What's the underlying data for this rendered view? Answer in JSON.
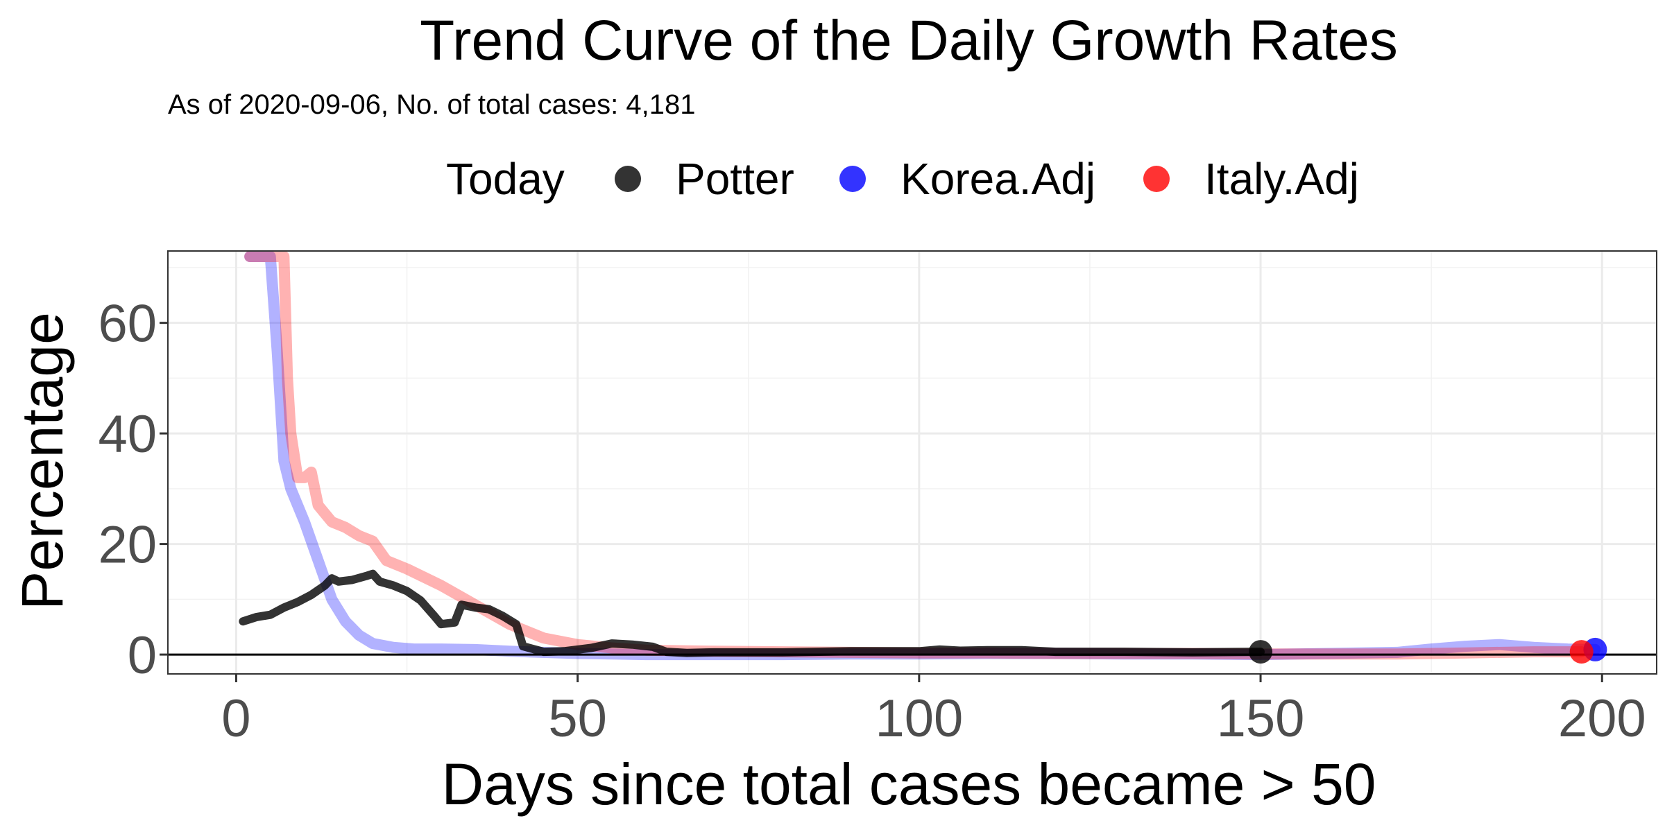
{
  "chart_data": {
    "type": "line",
    "title": "Trend Curve of the Daily Growth Rates",
    "subtitle": "As of 2020-09-06, No. of total cases: 4,181",
    "xlabel": "Days since total cases became > 50",
    "ylabel": "Percentage",
    "xlim": [
      -10,
      208
    ],
    "ylim": [
      -3.5,
      73
    ],
    "x_ticks": [
      0,
      50,
      100,
      150,
      200
    ],
    "y_ticks": [
      0,
      20,
      40,
      60
    ],
    "grid": true,
    "legend": {
      "title": "Today",
      "placement": "top"
    },
    "series": [
      {
        "name": "Potter",
        "color": "#000000",
        "opacity": 0.8,
        "points": [
          [
            1,
            6
          ],
          [
            3,
            6.8
          ],
          [
            5,
            7.2
          ],
          [
            7,
            8.5
          ],
          [
            9,
            9.5
          ],
          [
            11,
            10.8
          ],
          [
            13,
            12.5
          ],
          [
            14,
            13.8
          ],
          [
            15,
            13.2
          ],
          [
            17,
            13.5
          ],
          [
            19,
            14.2
          ],
          [
            20,
            14.6
          ],
          [
            21,
            13.2
          ],
          [
            23,
            12.5
          ],
          [
            25,
            11.5
          ],
          [
            27,
            9.8
          ],
          [
            29,
            7
          ],
          [
            30,
            5.5
          ],
          [
            32,
            5.8
          ],
          [
            33,
            9
          ],
          [
            35,
            8.5
          ],
          [
            37,
            8.2
          ],
          [
            39,
            7
          ],
          [
            41,
            5.5
          ],
          [
            42,
            1.5
          ],
          [
            45,
            0.5
          ],
          [
            48,
            0.6
          ],
          [
            52,
            1.2
          ],
          [
            55,
            2
          ],
          [
            58,
            1.8
          ],
          [
            61,
            1.4
          ],
          [
            63,
            0.5
          ],
          [
            66,
            0.3
          ],
          [
            70,
            0.4
          ],
          [
            80,
            0.4
          ],
          [
            90,
            0.6
          ],
          [
            100,
            0.6
          ],
          [
            103,
            0.9
          ],
          [
            106,
            0.7
          ],
          [
            110,
            0.8
          ],
          [
            115,
            0.8
          ],
          [
            120,
            0.5
          ],
          [
            130,
            0.5
          ],
          [
            140,
            0.4
          ],
          [
            150,
            0.5
          ]
        ],
        "today": [
          150,
          0.5
        ]
      },
      {
        "name": "Korea.Adj",
        "color": "#0000ff",
        "opacity": 0.3,
        "points": [
          [
            2,
            72
          ],
          [
            4,
            72
          ],
          [
            5,
            72
          ],
          [
            6,
            55
          ],
          [
            6.5,
            45
          ],
          [
            7,
            35
          ],
          [
            8,
            30
          ],
          [
            10,
            24
          ],
          [
            12,
            17
          ],
          [
            14,
            10
          ],
          [
            16,
            6
          ],
          [
            18,
            3.5
          ],
          [
            20,
            2
          ],
          [
            23,
            1.3
          ],
          [
            26,
            1
          ],
          [
            30,
            1
          ],
          [
            35,
            0.9
          ],
          [
            40,
            0.6
          ],
          [
            50,
            0.2
          ],
          [
            60,
            0
          ],
          [
            70,
            0
          ],
          [
            80,
            0
          ],
          [
            90,
            0.1
          ],
          [
            100,
            0.1
          ],
          [
            110,
            0.2
          ],
          [
            120,
            0.2
          ],
          [
            130,
            0.1
          ],
          [
            140,
            0.1
          ],
          [
            150,
            0
          ],
          [
            160,
            0.2
          ],
          [
            170,
            0.4
          ],
          [
            175,
            1
          ],
          [
            180,
            1.5
          ],
          [
            185,
            1.8
          ],
          [
            190,
            1.3
          ],
          [
            195,
            1
          ],
          [
            199,
            0.9
          ]
        ],
        "today": [
          199,
          0.9
        ]
      },
      {
        "name": "Italy.Adj",
        "color": "#ff0000",
        "opacity": 0.3,
        "points": [
          [
            2,
            72
          ],
          [
            5,
            72
          ],
          [
            7,
            72
          ],
          [
            7.5,
            50
          ],
          [
            8,
            40
          ],
          [
            9,
            32
          ],
          [
            10,
            32
          ],
          [
            11,
            33
          ],
          [
            12,
            27
          ],
          [
            14,
            24
          ],
          [
            16,
            23
          ],
          [
            18,
            21.5
          ],
          [
            20,
            20.5
          ],
          [
            22,
            17
          ],
          [
            25,
            15.5
          ],
          [
            30,
            12.5
          ],
          [
            35,
            9
          ],
          [
            40,
            5.5
          ],
          [
            45,
            3
          ],
          [
            50,
            1.8
          ],
          [
            55,
            1.2
          ],
          [
            60,
            0.8
          ],
          [
            70,
            0.6
          ],
          [
            80,
            0.5
          ],
          [
            90,
            0.4
          ],
          [
            100,
            0.3
          ],
          [
            110,
            0.3
          ],
          [
            120,
            0.2
          ],
          [
            130,
            0.2
          ],
          [
            140,
            0.2
          ],
          [
            150,
            0.1
          ],
          [
            160,
            0.1
          ],
          [
            170,
            0.1
          ],
          [
            180,
            0.3
          ],
          [
            190,
            0.5
          ],
          [
            197,
            0.5
          ]
        ],
        "today": [
          197,
          0.5
        ]
      }
    ]
  }
}
